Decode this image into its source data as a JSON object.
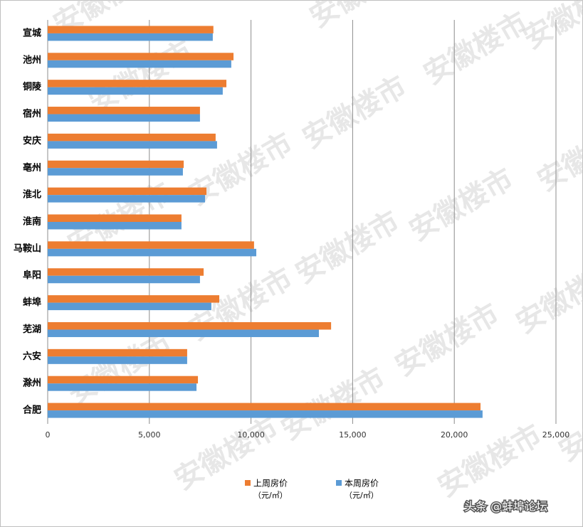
{
  "chart_data": {
    "type": "hbar",
    "categories": [
      "宣城",
      "池州",
      "铜陵",
      "宿州",
      "安庆",
      "亳州",
      "淮北",
      "淮南",
      "马鞍山",
      "阜阳",
      "蚌埠",
      "芜湖",
      "六安",
      "滁州",
      "合肥"
    ],
    "series": [
      {
        "name": "上周房价",
        "color": "#ed7d31",
        "values": [
          8150,
          9140,
          8790,
          7490,
          8260,
          6690,
          7810,
          6580,
          10150,
          7670,
          8440,
          13940,
          6860,
          7390,
          21290
        ]
      },
      {
        "name": "本周房价",
        "color": "#5b9bd5",
        "values": [
          8120,
          9030,
          8610,
          7490,
          8330,
          6650,
          7740,
          6580,
          10260,
          7490,
          8050,
          13340,
          6860,
          7320,
          21390
        ]
      }
    ],
    "legend_unit": "（元/㎡）",
    "xlim": [
      0,
      25000
    ],
    "xticks": [
      0,
      {
        "value": 5000,
        "label": "5,000"
      },
      {
        "value": 10000,
        "label": "10,000"
      },
      {
        "value": 15000,
        "label": "15,000"
      },
      {
        "value": 20000,
        "label": "20,000"
      },
      {
        "value": 25000,
        "label": "25,000"
      }
    ],
    "grid": true,
    "watermark": "安徽楼市",
    "footer": "头条 @蚌埠论坛"
  }
}
